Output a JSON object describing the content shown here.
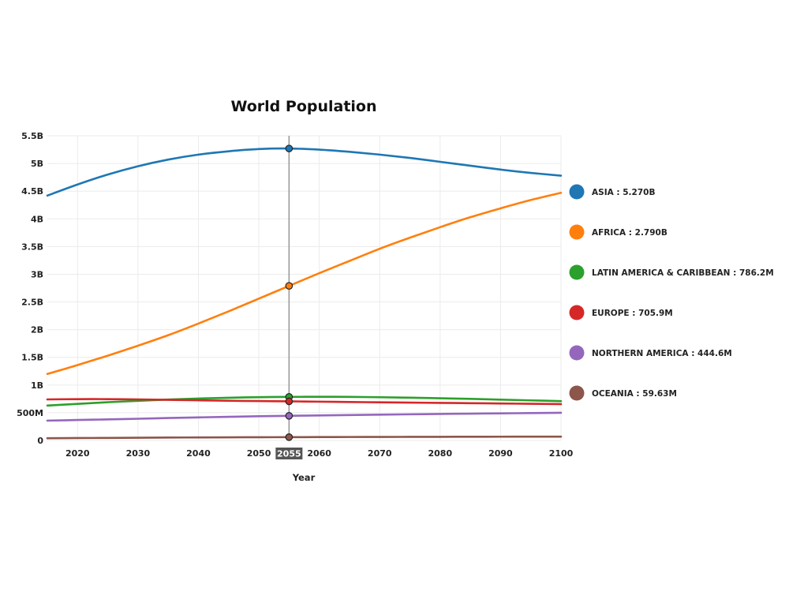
{
  "chart_data": {
    "type": "line",
    "title": "World Population",
    "xlabel": "Year",
    "ylabel": "",
    "xlim": [
      2015,
      2100
    ],
    "ylim": [
      0,
      5500000000
    ],
    "x_ticks": [
      2020,
      2030,
      2040,
      2050,
      2060,
      2070,
      2080,
      2090,
      2100
    ],
    "x_tick_labels": [
      "2020",
      "2030",
      "2040",
      "2050",
      "2060",
      "2070",
      "2080",
      "2090",
      "2100"
    ],
    "y_ticks": [
      0,
      500000000,
      1000000000,
      1500000000,
      2000000000,
      2500000000,
      3000000000,
      3500000000,
      4000000000,
      4500000000,
      5000000000,
      5500000000
    ],
    "y_tick_labels": [
      "0",
      "500M",
      "1B",
      "1.5B",
      "2B",
      "2.5B",
      "3B",
      "3.5B",
      "4B",
      "4.5B",
      "5B",
      "5.5B"
    ],
    "grid": true,
    "legend_position": "right",
    "hover_year": 2055,
    "hover_year_label": "2055",
    "x": [
      2015,
      2020,
      2025,
      2030,
      2035,
      2040,
      2045,
      2050,
      2055,
      2060,
      2065,
      2070,
      2075,
      2080,
      2085,
      2090,
      2095,
      2100
    ],
    "series": [
      {
        "name": "ASIA",
        "legend_label": "ASIA : 5.270B",
        "color": "#1f77b4",
        "values": [
          4420000000,
          4620000000,
          4800000000,
          4950000000,
          5070000000,
          5160000000,
          5220000000,
          5260000000,
          5270000000,
          5250000000,
          5210000000,
          5160000000,
          5100000000,
          5030000000,
          4960000000,
          4890000000,
          4830000000,
          4780000000
        ]
      },
      {
        "name": "AFRICA",
        "legend_label": "AFRICA : 2.790B",
        "color": "#ff7f0e",
        "values": [
          1200000000,
          1360000000,
          1530000000,
          1710000000,
          1900000000,
          2110000000,
          2330000000,
          2560000000,
          2790000000,
          3020000000,
          3240000000,
          3460000000,
          3660000000,
          3850000000,
          4030000000,
          4190000000,
          4340000000,
          4470000000
        ]
      },
      {
        "name": "LATIN AMERICA & CARIBBEAN",
        "legend_label": "LATIN AMERICA & CARIBBEAN : 786.2M",
        "color": "#2ca02c",
        "values": [
          630000000,
          660000000,
          690000000,
          715000000,
          738000000,
          757000000,
          771000000,
          781000000,
          786200000,
          788000000,
          786000000,
          780000000,
          772000000,
          762000000,
          750000000,
          737000000,
          723000000,
          710000000
        ]
      },
      {
        "name": "EUROPE",
        "legend_label": "EUROPE : 705.9M",
        "color": "#d62728",
        "values": [
          741000000,
          746000000,
          746000000,
          741000000,
          733000000,
          725000000,
          717000000,
          711000000,
          705900000,
          700000000,
          694000000,
          688000000,
          683000000,
          678000000,
          673000000,
          667000000,
          662000000,
          656000000
        ]
      },
      {
        "name": "NORTHERN AMERICA",
        "legend_label": "NORTHERN AMERICA : 444.6M",
        "color": "#9467bd",
        "values": [
          358000000,
          369000000,
          380000000,
          392000000,
          405000000,
          416000000,
          427000000,
          437000000,
          444600000,
          452000000,
          459000000,
          466000000,
          472000000,
          478000000,
          484000000,
          489000000,
          494000000,
          499000000
        ]
      },
      {
        "name": "OCEANIA",
        "legend_label": "OCEANIA : 59.63M",
        "color": "#8c564b",
        "values": [
          40000000,
          43000000,
          46000000,
          49000000,
          52000000,
          54500000,
          56500000,
          58000000,
          59630000,
          61000000,
          62300000,
          63500000,
          64600000,
          65600000,
          66600000,
          67500000,
          68300000,
          69000000
        ]
      }
    ]
  }
}
